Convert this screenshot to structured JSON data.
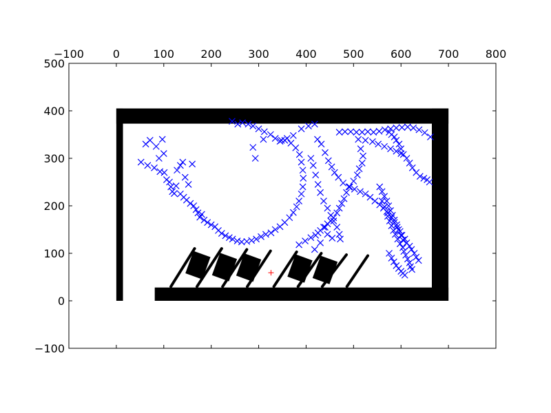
{
  "chart_data": {
    "type": "scatter",
    "title": "",
    "xlabel": "",
    "ylabel": "",
    "xlim": [
      -100,
      800
    ],
    "ylim": [
      -100,
      500
    ],
    "x_ticks": [
      -100,
      0,
      100,
      200,
      300,
      400,
      500,
      600,
      700,
      800
    ],
    "y_ticks": [
      -100,
      0,
      100,
      200,
      300,
      400,
      500
    ],
    "x_tick_labels": [
      "−100",
      "0",
      "100",
      "200",
      "300",
      "400",
      "500",
      "600",
      "700",
      "800"
    ],
    "y_tick_labels": [
      "−100",
      "0",
      "100",
      "200",
      "300",
      "400",
      "500"
    ],
    "x_axis_position": "top",
    "grid": false,
    "legend": "none",
    "colors": {
      "samples": "#0000ff",
      "target": "#ff0000",
      "obstacles": "#000000"
    },
    "walls": [
      {
        "x": [
          0,
          700
        ],
        "y": [
          373,
          405
        ]
      },
      {
        "x": [
          0,
          14
        ],
        "y": [
          0,
          405
        ]
      },
      {
        "x": [
          665,
          700
        ],
        "y": [
          0,
          405
        ]
      },
      {
        "x": [
          81,
          700
        ],
        "y": [
          0,
          28
        ]
      }
    ],
    "pallets": [
      {
        "center": [
          172,
          75
        ],
        "w": 38,
        "h": 50,
        "angle": -20
      },
      {
        "center": [
          228,
          71
        ],
        "w": 38,
        "h": 50,
        "angle": -20
      },
      {
        "center": [
          279,
          70
        ],
        "w": 38,
        "h": 50,
        "angle": -20
      },
      {
        "center": [
          387,
          68
        ],
        "w": 38,
        "h": 50,
        "angle": -20
      },
      {
        "center": [
          440,
          65
        ],
        "w": 38,
        "h": 50,
        "angle": -20
      }
    ],
    "rails": [
      [
        [
          115,
          30
        ],
        [
          165,
          110
        ]
      ],
      [
        [
          170,
          30
        ],
        [
          222,
          110
        ]
      ],
      [
        [
          224,
          30
        ],
        [
          275,
          108
        ]
      ],
      [
        [
          276,
          30
        ],
        [
          325,
          105
        ]
      ],
      [
        [
          332,
          30
        ],
        [
          380,
          103
        ]
      ],
      [
        [
          383,
          30
        ],
        [
          432,
          100
        ]
      ],
      [
        [
          434,
          30
        ],
        [
          485,
          97
        ]
      ],
      [
        [
          486,
          30
        ],
        [
          530,
          95
        ]
      ]
    ],
    "target_point": {
      "x": 326,
      "y": 59,
      "marker": "+"
    },
    "series": [
      {
        "marker": "x",
        "points": [
          [
            52,
            292
          ],
          [
            62,
            330
          ],
          [
            66,
            285
          ],
          [
            71,
            338
          ],
          [
            80,
            280
          ],
          [
            84,
            325
          ],
          [
            90,
            300
          ],
          [
            92,
            272
          ],
          [
            97,
            340
          ],
          [
            100,
            310
          ],
          [
            101,
            270
          ],
          [
            106,
            255
          ],
          [
            112,
            250
          ],
          [
            115,
            240
          ],
          [
            118,
            230
          ],
          [
            122,
            226
          ],
          [
            126,
            242
          ],
          [
            128,
            275
          ],
          [
            135,
            285
          ],
          [
            135,
            225
          ],
          [
            140,
            292
          ],
          [
            142,
            218
          ],
          [
            145,
            260
          ],
          [
            148,
            212
          ],
          [
            152,
            245
          ],
          [
            156,
            205
          ],
          [
            160,
            288
          ],
          [
            163,
            200
          ],
          [
            168,
            192
          ],
          [
            172,
            185
          ],
          [
            176,
            176
          ],
          [
            180,
            182
          ],
          [
            185,
            170
          ],
          [
            192,
            165
          ],
          [
            200,
            160
          ],
          [
            208,
            156
          ],
          [
            215,
            148
          ],
          [
            222,
            142
          ],
          [
            230,
            137
          ],
          [
            238,
            133
          ],
          [
            245,
            130
          ],
          [
            255,
            126
          ],
          [
            264,
            124
          ],
          [
            275,
            125
          ],
          [
            285,
            127
          ],
          [
            295,
            130
          ],
          [
            305,
            135
          ],
          [
            315,
            140
          ],
          [
            326,
            143
          ],
          [
            335,
            150
          ],
          [
            345,
            156
          ],
          [
            355,
            165
          ],
          [
            365,
            175
          ],
          [
            373,
            186
          ],
          [
            380,
            198
          ],
          [
            385,
            210
          ],
          [
            390,
            225
          ],
          [
            393,
            240
          ],
          [
            394,
            258
          ],
          [
            393,
            275
          ],
          [
            390,
            292
          ],
          [
            386,
            308
          ],
          [
            378,
            322
          ],
          [
            368,
            332
          ],
          [
            355,
            338
          ],
          [
            345,
            336
          ],
          [
            335,
            342
          ],
          [
            325,
            350
          ],
          [
            312,
            356
          ],
          [
            300,
            362
          ],
          [
            288,
            368
          ],
          [
            278,
            372
          ],
          [
            266,
            375
          ],
          [
            256,
            372
          ],
          [
            244,
            378
          ],
          [
            293,
            300
          ],
          [
            288,
            323
          ],
          [
            310,
            340
          ],
          [
            348,
            338
          ],
          [
            360,
            342
          ],
          [
            373,
            348
          ],
          [
            390,
            362
          ],
          [
            405,
            368
          ],
          [
            418,
            372
          ],
          [
            410,
            300
          ],
          [
            415,
            285
          ],
          [
            420,
            265
          ],
          [
            425,
            245
          ],
          [
            430,
            228
          ],
          [
            437,
            210
          ],
          [
            445,
            195
          ],
          [
            452,
            180
          ],
          [
            458,
            168
          ],
          [
            465,
            155
          ],
          [
            470,
            140
          ],
          [
            472,
            130
          ],
          [
            440,
            155
          ],
          [
            445,
            140
          ],
          [
            455,
            132
          ],
          [
            418,
            108
          ],
          [
            430,
            122
          ],
          [
            424,
            340
          ],
          [
            432,
            330
          ],
          [
            440,
            312
          ],
          [
            447,
            295
          ],
          [
            454,
            282
          ],
          [
            460,
            270
          ],
          [
            468,
            260
          ],
          [
            478,
            248
          ],
          [
            490,
            240
          ],
          [
            502,
            235
          ],
          [
            514,
            230
          ],
          [
            525,
            225
          ],
          [
            535,
            218
          ],
          [
            545,
            210
          ],
          [
            555,
            202
          ],
          [
            563,
            195
          ],
          [
            572,
            185
          ],
          [
            580,
            175
          ],
          [
            586,
            165
          ],
          [
            592,
            155
          ],
          [
            598,
            146
          ],
          [
            602,
            138
          ],
          [
            608,
            130
          ],
          [
            612,
            122
          ],
          [
            618,
            115
          ],
          [
            622,
            108
          ],
          [
            628,
            100
          ],
          [
            632,
            92
          ],
          [
            637,
            85
          ],
          [
            575,
            355
          ],
          [
            580,
            350
          ],
          [
            586,
            345
          ],
          [
            590,
            338
          ],
          [
            596,
            330
          ],
          [
            600,
            320
          ],
          [
            605,
            308
          ],
          [
            612,
            300
          ],
          [
            618,
            290
          ],
          [
            624,
            280
          ],
          [
            632,
            270
          ],
          [
            640,
            262
          ],
          [
            648,
            258
          ],
          [
            655,
            255
          ],
          [
            660,
            250
          ],
          [
            555,
            240
          ],
          [
            560,
            230
          ],
          [
            565,
            220
          ],
          [
            570,
            210
          ],
          [
            574,
            200
          ],
          [
            578,
            190
          ],
          [
            582,
            180
          ],
          [
            586,
            170
          ],
          [
            591,
            160
          ],
          [
            595,
            150
          ],
          [
            600,
            138
          ],
          [
            604,
            128
          ],
          [
            560,
            210
          ],
          [
            565,
            198
          ],
          [
            570,
            188
          ],
          [
            572,
            178
          ],
          [
            576,
            168
          ],
          [
            580,
            158
          ],
          [
            584,
            148
          ],
          [
            588,
            140
          ],
          [
            593,
            130
          ],
          [
            598,
            120
          ],
          [
            604,
            112
          ],
          [
            606,
            104
          ],
          [
            610,
            96
          ],
          [
            614,
            88
          ],
          [
            618,
            80
          ],
          [
            620,
            72
          ],
          [
            623,
            66
          ],
          [
            575,
            100
          ],
          [
            580,
            90
          ],
          [
            585,
            82
          ],
          [
            590,
            74
          ],
          [
            595,
            68
          ],
          [
            600,
            62
          ],
          [
            604,
            58
          ],
          [
            608,
            54
          ],
          [
            470,
            355
          ],
          [
            482,
            356
          ],
          [
            494,
            356
          ],
          [
            506,
            355
          ],
          [
            518,
            355
          ],
          [
            530,
            356
          ],
          [
            542,
            355
          ],
          [
            554,
            357
          ],
          [
            566,
            360
          ],
          [
            578,
            362
          ],
          [
            590,
            364
          ],
          [
            602,
            365
          ],
          [
            614,
            366
          ],
          [
            626,
            364
          ],
          [
            638,
            360
          ],
          [
            650,
            354
          ],
          [
            662,
            345
          ],
          [
            510,
            340
          ],
          [
            525,
            338
          ],
          [
            540,
            335
          ],
          [
            552,
            330
          ],
          [
            565,
            325
          ],
          [
            578,
            320
          ],
          [
            590,
            315
          ],
          [
            600,
            310
          ],
          [
            515,
            320
          ],
          [
            520,
            305
          ],
          [
            518,
            290
          ],
          [
            512,
            278
          ],
          [
            508,
            265
          ],
          [
            500,
            252
          ],
          [
            492,
            240
          ],
          [
            485,
            228
          ],
          [
            480,
            215
          ],
          [
            475,
            205
          ],
          [
            470,
            195
          ],
          [
            465,
            185
          ],
          [
            458,
            175
          ],
          [
            452,
            168
          ],
          [
            445,
            162
          ],
          [
            437,
            155
          ],
          [
            430,
            148
          ],
          [
            425,
            143
          ],
          [
            420,
            138
          ],
          [
            410,
            133
          ],
          [
            398,
            126
          ],
          [
            385,
            118
          ]
        ]
      }
    ]
  }
}
